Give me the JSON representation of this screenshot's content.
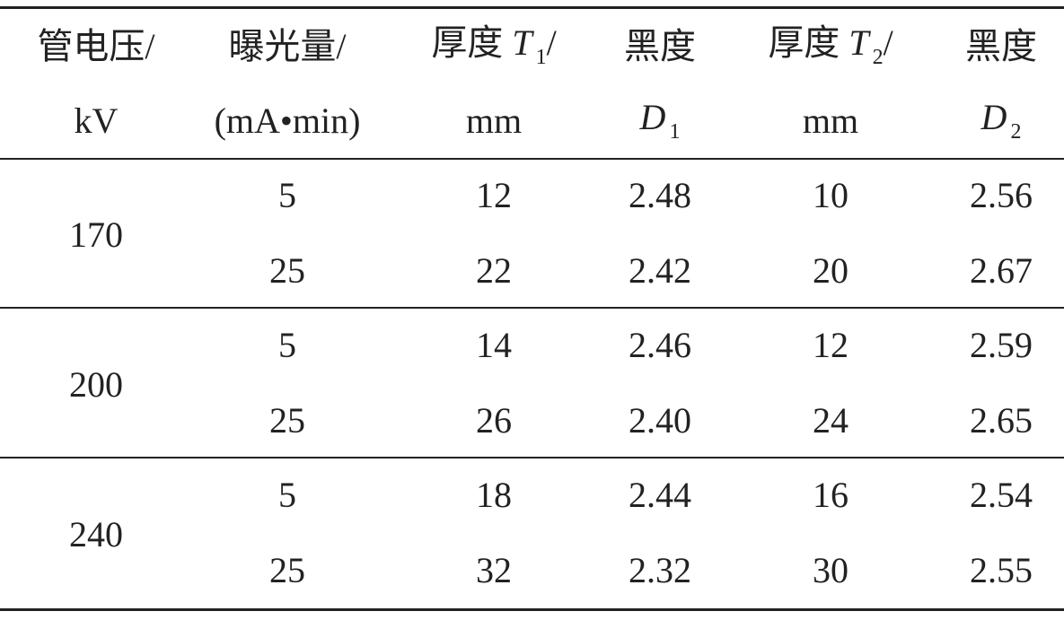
{
  "header": [
    {
      "line1": [
        "管电压/"
      ],
      "line2": [
        "kV"
      ]
    },
    {
      "line1": [
        "曝光量/"
      ],
      "line2": [
        "(mA•min)"
      ]
    },
    {
      "line1": [
        "厚度 ",
        "T",
        "1",
        "/"
      ],
      "line2": [
        "mm"
      ]
    },
    {
      "line1": [
        "黑度"
      ],
      "line2": [
        "D",
        "1"
      ]
    },
    {
      "line1": [
        "厚度 ",
        "T",
        "2",
        "/"
      ],
      "line2": [
        "mm"
      ]
    },
    {
      "line1": [
        "黑度"
      ],
      "line2": [
        "D",
        "2"
      ]
    }
  ],
  "groups": [
    {
      "voltage": "170",
      "rows": [
        [
          "5",
          "12",
          "2.48",
          "10",
          "2.56"
        ],
        [
          "25",
          "22",
          "2.42",
          "20",
          "2.67"
        ]
      ]
    },
    {
      "voltage": "200",
      "rows": [
        [
          "5",
          "14",
          "2.46",
          "12",
          "2.59"
        ],
        [
          "25",
          "26",
          "2.40",
          "24",
          "2.65"
        ]
      ]
    },
    {
      "voltage": "240",
      "rows": [
        [
          "5",
          "18",
          "2.44",
          "16",
          "2.54"
        ],
        [
          "25",
          "32",
          "2.32",
          "30",
          "2.55"
        ]
      ]
    }
  ]
}
